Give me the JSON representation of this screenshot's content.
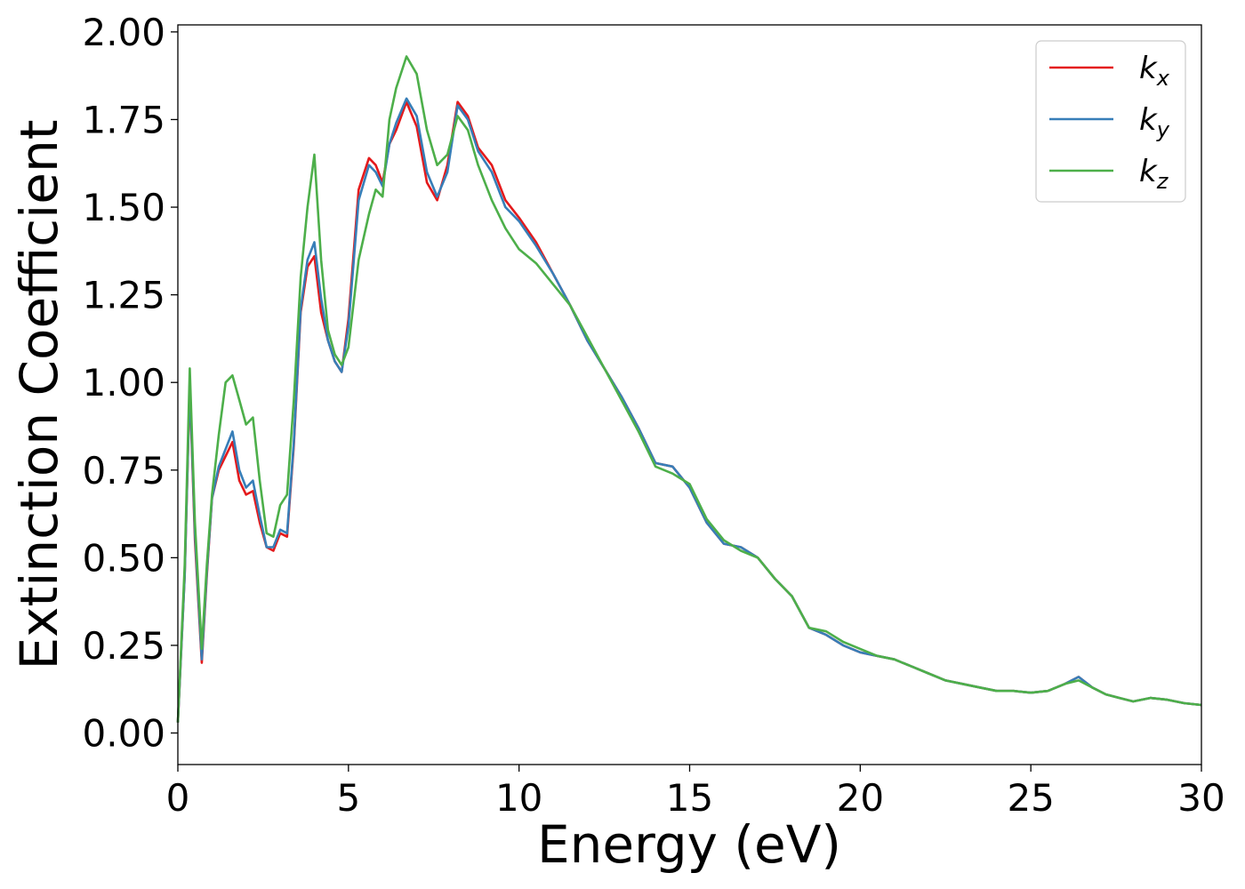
{
  "chart_data": {
    "type": "line",
    "xlabel": "Energy (eV)",
    "ylabel": "Extinction Coefficient",
    "xlim": [
      0,
      30
    ],
    "ylim": [
      -0.09,
      2.02
    ],
    "xticks": [
      0,
      5,
      10,
      15,
      20,
      25,
      30
    ],
    "xtick_labels": [
      "0",
      "5",
      "10",
      "15",
      "20",
      "25",
      "30"
    ],
    "yticks": [
      0,
      0.25,
      0.5,
      0.75,
      1.0,
      1.25,
      1.5,
      1.75,
      2.0
    ],
    "ytick_labels": [
      "0.00",
      "0.25",
      "0.50",
      "0.75",
      "1.00",
      "1.25",
      "1.50",
      "1.75",
      "2.00"
    ],
    "grid": false,
    "legend_position": "top-right",
    "series": [
      {
        "name": "k_x",
        "label_main": "k",
        "label_sub": "x",
        "color": "#e41a1c",
        "x": [
          0,
          0.2,
          0.35,
          0.5,
          0.7,
          0.85,
          1.0,
          1.2,
          1.4,
          1.6,
          1.8,
          2.0,
          2.2,
          2.4,
          2.6,
          2.8,
          3.0,
          3.2,
          3.4,
          3.6,
          3.8,
          4.0,
          4.2,
          4.4,
          4.6,
          4.8,
          5.0,
          5.3,
          5.6,
          5.8,
          6.0,
          6.2,
          6.4,
          6.7,
          7.0,
          7.3,
          7.6,
          7.9,
          8.2,
          8.5,
          8.8,
          9.2,
          9.6,
          10.0,
          10.5,
          11.0,
          11.5,
          12.0,
          12.5,
          13.0,
          13.5,
          14.0,
          14.5,
          15.0,
          15.5,
          16.0,
          16.5,
          17.0,
          17.5,
          18.0,
          18.5,
          19.0,
          19.5,
          20.0,
          20.5,
          21.0,
          21.5,
          22.0,
          22.5,
          23.0,
          23.5,
          24.0,
          24.5,
          25.0,
          25.5,
          26.0,
          26.4,
          26.8,
          27.2,
          27.6,
          28.0,
          28.5,
          29.0,
          29.5,
          30.0
        ],
        "values": [
          0.03,
          0.45,
          0.99,
          0.55,
          0.2,
          0.45,
          0.67,
          0.75,
          0.79,
          0.83,
          0.72,
          0.68,
          0.69,
          0.6,
          0.53,
          0.52,
          0.57,
          0.56,
          0.82,
          1.2,
          1.33,
          1.36,
          1.2,
          1.12,
          1.06,
          1.03,
          1.18,
          1.55,
          1.64,
          1.62,
          1.57,
          1.68,
          1.72,
          1.8,
          1.73,
          1.57,
          1.52,
          1.62,
          1.8,
          1.76,
          1.67,
          1.62,
          1.52,
          1.47,
          1.4,
          1.31,
          1.22,
          1.12,
          1.04,
          0.96,
          0.87,
          0.77,
          0.76,
          0.7,
          0.6,
          0.54,
          0.53,
          0.5,
          0.44,
          0.39,
          0.3,
          0.28,
          0.25,
          0.23,
          0.22,
          0.21,
          0.19,
          0.17,
          0.15,
          0.14,
          0.13,
          0.12,
          0.12,
          0.115,
          0.12,
          0.14,
          0.16,
          0.13,
          0.11,
          0.1,
          0.09,
          0.1,
          0.095,
          0.085,
          0.08
        ]
      },
      {
        "name": "k_y",
        "label_main": "k",
        "label_sub": "y",
        "color": "#377eb8",
        "x": [
          0,
          0.2,
          0.35,
          0.5,
          0.7,
          0.85,
          1.0,
          1.2,
          1.4,
          1.6,
          1.8,
          2.0,
          2.2,
          2.4,
          2.6,
          2.8,
          3.0,
          3.2,
          3.4,
          3.6,
          3.8,
          4.0,
          4.2,
          4.4,
          4.6,
          4.8,
          5.0,
          5.3,
          5.6,
          5.8,
          6.0,
          6.2,
          6.4,
          6.7,
          7.0,
          7.3,
          7.6,
          7.9,
          8.2,
          8.5,
          8.8,
          9.2,
          9.6,
          10.0,
          10.5,
          11.0,
          11.5,
          12.0,
          12.5,
          13.0,
          13.5,
          14.0,
          14.5,
          15.0,
          15.5,
          16.0,
          16.5,
          17.0,
          17.5,
          18.0,
          18.5,
          19.0,
          19.5,
          20.0,
          20.5,
          21.0,
          21.5,
          22.0,
          22.5,
          23.0,
          23.5,
          24.0,
          24.5,
          25.0,
          25.5,
          26.0,
          26.4,
          26.8,
          27.2,
          27.6,
          28.0,
          28.5,
          29.0,
          29.5,
          30.0
        ],
        "values": [
          0.03,
          0.45,
          1.0,
          0.57,
          0.21,
          0.46,
          0.67,
          0.76,
          0.81,
          0.86,
          0.75,
          0.7,
          0.72,
          0.62,
          0.53,
          0.53,
          0.58,
          0.57,
          0.83,
          1.21,
          1.35,
          1.4,
          1.24,
          1.12,
          1.06,
          1.03,
          1.16,
          1.52,
          1.62,
          1.6,
          1.56,
          1.68,
          1.74,
          1.81,
          1.76,
          1.6,
          1.53,
          1.6,
          1.79,
          1.75,
          1.66,
          1.6,
          1.5,
          1.46,
          1.39,
          1.31,
          1.22,
          1.12,
          1.04,
          0.96,
          0.87,
          0.77,
          0.76,
          0.7,
          0.6,
          0.54,
          0.53,
          0.5,
          0.44,
          0.39,
          0.3,
          0.28,
          0.25,
          0.23,
          0.22,
          0.21,
          0.19,
          0.17,
          0.15,
          0.14,
          0.13,
          0.12,
          0.12,
          0.115,
          0.12,
          0.14,
          0.16,
          0.13,
          0.11,
          0.1,
          0.09,
          0.1,
          0.095,
          0.085,
          0.08
        ]
      },
      {
        "name": "k_z",
        "label_main": "k",
        "label_sub": "z",
        "color": "#4daf4a",
        "x": [
          0,
          0.2,
          0.35,
          0.5,
          0.7,
          0.85,
          1.0,
          1.2,
          1.4,
          1.6,
          1.8,
          2.0,
          2.2,
          2.4,
          2.6,
          2.8,
          3.0,
          3.2,
          3.4,
          3.6,
          3.8,
          4.0,
          4.2,
          4.4,
          4.6,
          4.8,
          5.0,
          5.3,
          5.6,
          5.8,
          6.0,
          6.2,
          6.4,
          6.7,
          7.0,
          7.3,
          7.6,
          7.9,
          8.2,
          8.5,
          8.8,
          9.2,
          9.6,
          10.0,
          10.5,
          11.0,
          11.5,
          12.0,
          12.5,
          13.0,
          13.5,
          14.0,
          14.5,
          15.0,
          15.5,
          16.0,
          16.5,
          17.0,
          17.5,
          18.0,
          18.5,
          19.0,
          19.5,
          20.0,
          20.5,
          21.0,
          21.5,
          22.0,
          22.5,
          23.0,
          23.5,
          24.0,
          24.5,
          25.0,
          25.5,
          26.0,
          26.4,
          26.8,
          27.2,
          27.6,
          28.0,
          28.5,
          29.0,
          29.5,
          30.0
        ],
        "values": [
          0.03,
          0.48,
          1.04,
          0.6,
          0.24,
          0.48,
          0.68,
          0.85,
          1.0,
          1.02,
          0.95,
          0.88,
          0.9,
          0.72,
          0.57,
          0.56,
          0.65,
          0.68,
          0.95,
          1.3,
          1.5,
          1.65,
          1.35,
          1.15,
          1.08,
          1.05,
          1.1,
          1.35,
          1.48,
          1.55,
          1.53,
          1.75,
          1.84,
          1.93,
          1.88,
          1.72,
          1.62,
          1.65,
          1.76,
          1.72,
          1.62,
          1.52,
          1.44,
          1.38,
          1.34,
          1.28,
          1.22,
          1.13,
          1.04,
          0.95,
          0.86,
          0.76,
          0.74,
          0.71,
          0.61,
          0.55,
          0.52,
          0.5,
          0.44,
          0.39,
          0.3,
          0.29,
          0.26,
          0.24,
          0.22,
          0.21,
          0.19,
          0.17,
          0.15,
          0.14,
          0.13,
          0.12,
          0.12,
          0.115,
          0.12,
          0.14,
          0.15,
          0.13,
          0.11,
          0.1,
          0.09,
          0.1,
          0.095,
          0.085,
          0.08
        ]
      }
    ]
  }
}
